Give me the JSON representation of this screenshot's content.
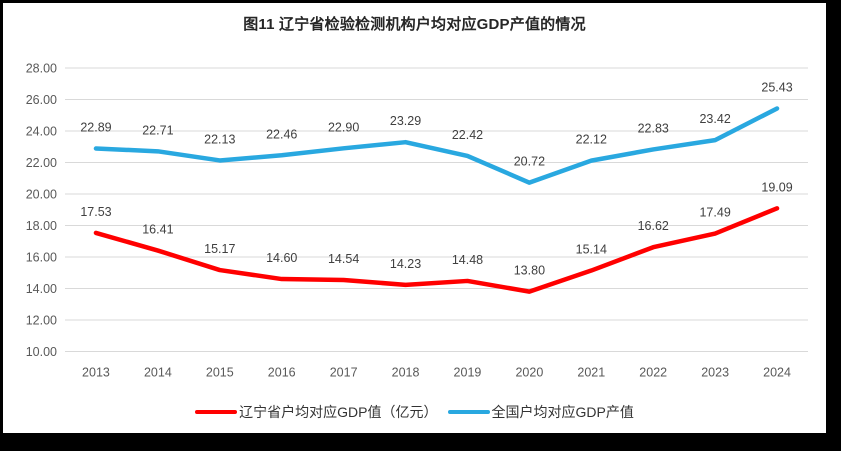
{
  "chart": {
    "title": "图11 辽宁省检验检测机构户均对应GDP产值的情况"
  },
  "chart_data": {
    "type": "line",
    "title": "图11 辽宁省检验检测机构户均对应GDP产值的情况",
    "categories": [
      "2013",
      "2014",
      "2015",
      "2016",
      "2017",
      "2018",
      "2019",
      "2020",
      "2021",
      "2022",
      "2023",
      "2024"
    ],
    "series": [
      {
        "name": "辽宁省户均对应GDP值（亿元）",
        "color": "#FF0000",
        "values": [
          17.53,
          16.41,
          15.17,
          14.6,
          14.54,
          14.23,
          14.48,
          13.8,
          15.14,
          16.62,
          17.49,
          19.09
        ]
      },
      {
        "name": "全国户均对应GDP产值",
        "color": "#29A8E0",
        "values": [
          22.89,
          22.71,
          22.13,
          22.46,
          22.9,
          23.29,
          22.42,
          20.72,
          22.12,
          22.83,
          23.42,
          25.43
        ]
      }
    ],
    "xlabel": "",
    "ylabel": "",
    "ylim": [
      10,
      28
    ],
    "y_tick_step": 2,
    "y_ticks": [
      "10.00",
      "12.00",
      "14.00",
      "16.00",
      "18.00",
      "20.00",
      "22.00",
      "24.00",
      "26.00",
      "28.00"
    ],
    "grid": "horizontal",
    "data_labels": "above-points",
    "legend_position": "bottom",
    "colors": {
      "gridline": "#D9D9D9",
      "axis_label": "#595959",
      "data_label": "#404040",
      "title": "#262626",
      "frame_border": "#000000",
      "background": "#FFFFFF"
    }
  }
}
